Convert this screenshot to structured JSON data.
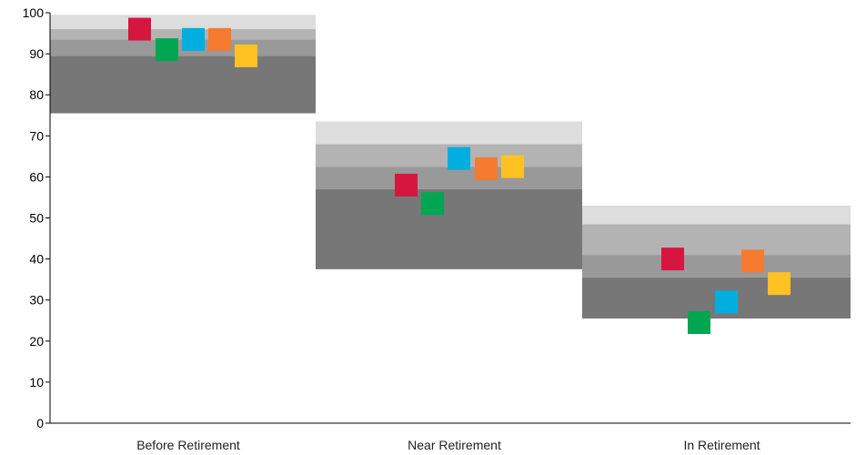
{
  "chart_data": {
    "type": "scatter",
    "title": "",
    "xlabel": "",
    "ylabel": "",
    "ylim": [
      0,
      100
    ],
    "yticks": [
      0,
      10,
      20,
      30,
      40,
      50,
      60,
      70,
      80,
      90,
      100
    ],
    "grid": false,
    "legend": "none",
    "categories": [
      "Before Retirement",
      "Near Retirement",
      "In Retirement"
    ],
    "band_colors": [
      "#777777",
      "#999999",
      "#b3b3b3",
      "#dddddd"
    ],
    "bands": [
      [
        75.5,
        89.5,
        93.5,
        96.0,
        99.5
      ],
      [
        37.5,
        57.0,
        62.5,
        68.0,
        73.5
      ],
      [
        25.5,
        35.5,
        41.0,
        48.5,
        53.0
      ]
    ],
    "series": [
      {
        "color": "#d7163f",
        "values": [
          96.0,
          58.0,
          40.0
        ]
      },
      {
        "color": "#00a651",
        "values": [
          91.0,
          53.5,
          24.5
        ]
      },
      {
        "color": "#00aee0",
        "values": [
          93.5,
          64.5,
          29.5
        ]
      },
      {
        "color": "#f47b30",
        "values": [
          93.5,
          62.0,
          39.5
        ]
      },
      {
        "color": "#ffc222",
        "values": [
          89.5,
          62.5,
          34.0
        ]
      }
    ]
  }
}
